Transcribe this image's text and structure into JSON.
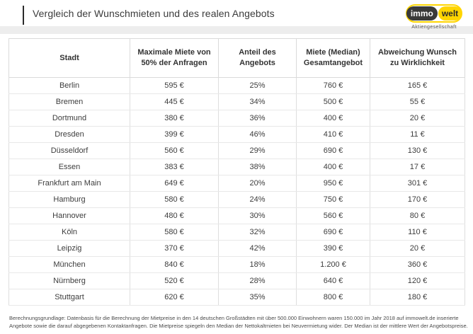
{
  "header": {
    "title": "Vergleich der Wunschmieten und des realen Angebots",
    "logo": {
      "part1": "immo",
      "part2": "welt",
      "subtitle": "Aktiengesellschaft"
    }
  },
  "colors": {
    "brand_yellow": "#ffd500",
    "brand_dark": "#3a3a39",
    "band_gray": "#ededed",
    "text_dark": "#3b3b3b"
  },
  "table": {
    "columns": [
      "Stadt",
      "Maximale Miete von 50% der Anfragen",
      "Anteil des Angebots",
      "Miete (Median) Gesamtangebot",
      "Abweichung Wunsch zu Wirklichkeit"
    ],
    "rows": [
      [
        "Berlin",
        "595 €",
        "25%",
        "760 €",
        "165 €"
      ],
      [
        "Bremen",
        "445 €",
        "34%",
        "500 €",
        "55 €"
      ],
      [
        "Dortmund",
        "380 €",
        "36%",
        "400 €",
        "20 €"
      ],
      [
        "Dresden",
        "399 €",
        "46%",
        "410 €",
        "11 €"
      ],
      [
        "Düsseldorf",
        "560 €",
        "29%",
        "690 €",
        "130 €"
      ],
      [
        "Essen",
        "383 €",
        "38%",
        "400 €",
        "17 €"
      ],
      [
        "Frankfurt am Main",
        "649 €",
        "20%",
        "950 €",
        "301 €"
      ],
      [
        "Hamburg",
        "580 €",
        "24%",
        "750 €",
        "170 €"
      ],
      [
        "Hannover",
        "480 €",
        "30%",
        "560 €",
        "80 €"
      ],
      [
        "Köln",
        "580 €",
        "32%",
        "690 €",
        "110 €"
      ],
      [
        "Leipzig",
        "370 €",
        "42%",
        "390 €",
        "20 €"
      ],
      [
        "München",
        "840 €",
        "18%",
        "1.200 €",
        "360 €"
      ],
      [
        "Nürnberg",
        "520 €",
        "28%",
        "640 €",
        "120 €"
      ],
      [
        "Stuttgart",
        "620 €",
        "35%",
        "800 €",
        "180 €"
      ]
    ]
  },
  "chart_data": {
    "type": "table",
    "title": "Vergleich der Wunschmieten und des realen Angebots",
    "categories": [
      "Berlin",
      "Bremen",
      "Dortmund",
      "Dresden",
      "Düsseldorf",
      "Essen",
      "Frankfurt am Main",
      "Hamburg",
      "Hannover",
      "Köln",
      "Leipzig",
      "München",
      "Nürnberg",
      "Stuttgart"
    ],
    "series": [
      {
        "name": "Maximale Miete von 50% der Anfragen (€)",
        "values": [
          595,
          445,
          380,
          399,
          560,
          383,
          649,
          580,
          480,
          580,
          370,
          840,
          520,
          620
        ]
      },
      {
        "name": "Anteil des Angebots (%)",
        "values": [
          25,
          34,
          36,
          46,
          29,
          38,
          20,
          24,
          30,
          32,
          42,
          18,
          28,
          35
        ]
      },
      {
        "name": "Miete (Median) Gesamtangebot (€)",
        "values": [
          760,
          500,
          400,
          410,
          690,
          400,
          950,
          750,
          560,
          690,
          390,
          1200,
          640,
          800
        ]
      },
      {
        "name": "Abweichung Wunsch zu Wirklichkeit (€)",
        "values": [
          165,
          55,
          20,
          11,
          130,
          17,
          301,
          170,
          80,
          110,
          20,
          360,
          120,
          180
        ]
      }
    ]
  },
  "footnote": "Berechnungsgrundlage: Datenbasis für die Berechnung der Mietpreise in den 14 deutschen Großstädten mit über 500.000 Einwohnern waren 150.000 im Jahr 2018 auf immowelt.de inserierte Angebote sowie die darauf abgegebenen Kontaktanfragen. Die Mietpreise spiegeln den Median der Nettokaltmieten bei Neuvermietung wider. Der Median ist der mittlere Wert der Angebotspreise."
}
